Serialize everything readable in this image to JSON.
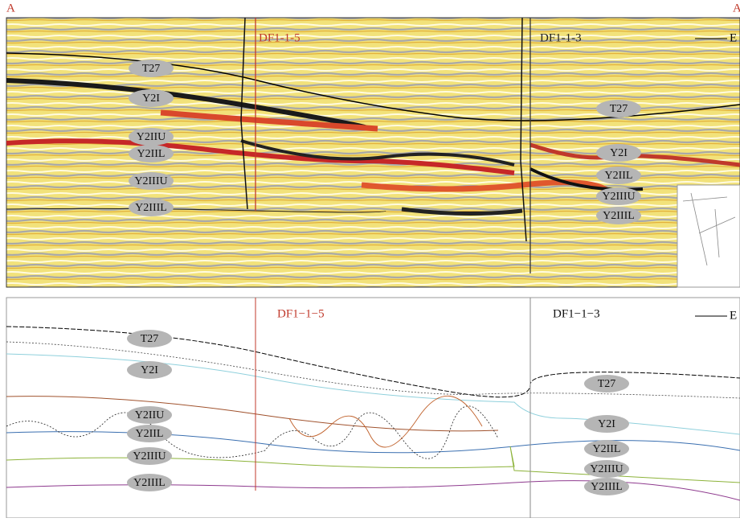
{
  "corner_labels": {
    "left": "A",
    "right": "A"
  },
  "top_panel": {
    "wells": [
      "DF1-1-5",
      "DF1-1-3"
    ],
    "direction": "E",
    "left_horizons": [
      "T27",
      "Y2I",
      "Y2IIU",
      "Y2IIL",
      "Y2IIIU",
      "Y2IIIL"
    ],
    "right_horizons": [
      "T27",
      "Y2I",
      "Y2IIL",
      "Y2IIIU",
      "Y2IIIL"
    ]
  },
  "bottom_panel": {
    "wells": [
      "DF1−1−5",
      "DF1−1−3"
    ],
    "direction": "E",
    "left_horizons": [
      "T27",
      "Y2I",
      "Y2IIU",
      "Y2IIL",
      "Y2IIIU",
      "Y2IIIL"
    ],
    "right_horizons": [
      "T27",
      "Y2I",
      "Y2IIL",
      "Y2IIIU",
      "Y2IIIL"
    ]
  }
}
